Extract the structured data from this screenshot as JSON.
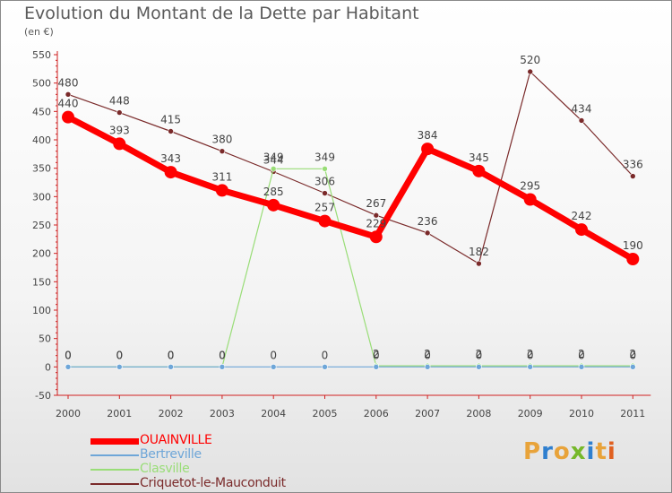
{
  "title": "Evolution du Montant de la Dette par Habitant",
  "subtitle": "(en €)",
  "logo_text": "Proxiti",
  "logo_colors": [
    "#e8a33a",
    "#2f7fcf",
    "#e8a33a",
    "#76b82a",
    "#2f7fcf",
    "#e8a33a",
    "#e06020"
  ],
  "chart_data": {
    "type": "line",
    "title": "Evolution du Montant de la Dette par Habitant",
    "ylabel": "(en €)",
    "xlabel": "",
    "ylim": [
      -50,
      550
    ],
    "yticks": [
      -50,
      0,
      50,
      100,
      150,
      200,
      250,
      300,
      350,
      400,
      450,
      500,
      550
    ],
    "x": [
      "2000",
      "2001",
      "2002",
      "2003",
      "2004",
      "2005",
      "2006",
      "2007",
      "2008",
      "2009",
      "2010",
      "2011"
    ],
    "grid": false,
    "legend_position": "bottom-left",
    "series": [
      {
        "name": "OUAINVILLE",
        "color": "#ff0000",
        "values": [
          440,
          393,
          343,
          311,
          285,
          257,
          229,
          384,
          345,
          295,
          242,
          190
        ],
        "labels": [
          "440",
          "393",
          "343",
          "311",
          "285",
          "257",
          "229",
          "384",
          "345",
          "295",
          "242",
          "190"
        ]
      },
      {
        "name": "Bertreville",
        "color": "#6ea6d8",
        "values": [
          0,
          0,
          0,
          0,
          0,
          0,
          0,
          0,
          0,
          0,
          0,
          0
        ],
        "labels": [
          "0",
          "0",
          "0",
          "0",
          "0",
          "0",
          "0",
          "0",
          "0",
          "0",
          "0",
          "0"
        ]
      },
      {
        "name": "Clasville",
        "color": "#99dd77",
        "values": [
          0,
          0,
          0,
          0,
          349,
          349,
          2,
          2,
          2,
          2,
          2,
          2
        ],
        "labels": [
          "0",
          "0",
          "0",
          "0",
          "349",
          "349",
          "2",
          "2",
          "2",
          "2",
          "2",
          "2"
        ]
      },
      {
        "name": "Criquetot-le-Mauconduit",
        "color": "#7a2a2a",
        "values": [
          480,
          448,
          415,
          380,
          344,
          306,
          267,
          236,
          182,
          520,
          434,
          336
        ],
        "labels": [
          "480",
          "448",
          "415",
          "380",
          "344",
          "306",
          "267",
          "236",
          "182",
          "520",
          "434",
          "336"
        ]
      }
    ]
  }
}
